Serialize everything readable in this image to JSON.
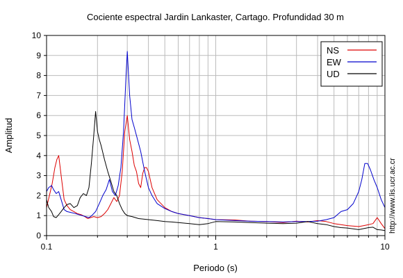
{
  "chart_data": {
    "type": "line",
    "title": "Cociente espectral Jardin Lankaster, Cartago. Profundidad 30 m",
    "xlabel": "Periodo (s)",
    "ylabel": "Amplitud",
    "x_scale": "log",
    "xlim": [
      0.1,
      10
    ],
    "ylim": [
      0,
      10
    ],
    "x_tick_labels": [
      {
        "value": 0.1,
        "label": "0.1"
      },
      {
        "value": 1,
        "label": "1"
      },
      {
        "value": 10,
        "label": "10"
      }
    ],
    "y_ticks": [
      0,
      1,
      2,
      3,
      4,
      5,
      6,
      7,
      8,
      9,
      10
    ],
    "grid": true,
    "legend_position": "top-right",
    "watermark": "http://www.lis.ucr.ac.cr",
    "series": [
      {
        "name": "NS",
        "color": "#dd0000",
        "x": [
          0.1,
          0.104,
          0.108,
          0.112,
          0.115,
          0.118,
          0.122,
          0.127,
          0.132,
          0.138,
          0.145,
          0.152,
          0.16,
          0.168,
          0.175,
          0.182,
          0.19,
          0.2,
          0.21,
          0.22,
          0.23,
          0.24,
          0.25,
          0.26,
          0.27,
          0.28,
          0.29,
          0.3,
          0.31,
          0.32,
          0.33,
          0.34,
          0.35,
          0.36,
          0.37,
          0.38,
          0.39,
          0.4,
          0.42,
          0.45,
          0.5,
          0.55,
          0.6,
          0.7,
          0.8,
          0.9,
          1.0,
          1.3,
          1.6,
          2.0,
          2.5,
          3.0,
          3.5,
          4.0,
          4.5,
          5.0,
          5.5,
          6.0,
          7.0,
          7.5,
          8.0,
          8.5,
          9.0,
          9.5,
          10.0
        ],
        "y": [
          1.4,
          2.0,
          2.6,
          3.4,
          3.8,
          4.0,
          3.0,
          1.8,
          1.5,
          1.3,
          1.2,
          1.1,
          1.05,
          0.95,
          0.85,
          0.9,
          0.95,
          0.9,
          0.95,
          1.1,
          1.3,
          1.6,
          1.9,
          1.7,
          2.0,
          3.2,
          5.2,
          6.0,
          4.8,
          4.2,
          3.5,
          3.2,
          2.6,
          2.4,
          3.1,
          3.4,
          3.4,
          3.2,
          2.4,
          1.8,
          1.4,
          1.2,
          1.1,
          1.0,
          0.9,
          0.85,
          0.8,
          0.78,
          0.72,
          0.7,
          0.65,
          0.72,
          0.68,
          0.75,
          0.7,
          0.6,
          0.55,
          0.5,
          0.45,
          0.5,
          0.55,
          0.6,
          0.9,
          0.6,
          0.35
        ]
      },
      {
        "name": "EW",
        "color": "#0000cc",
        "x": [
          0.1,
          0.103,
          0.107,
          0.11,
          0.114,
          0.118,
          0.122,
          0.127,
          0.132,
          0.14,
          0.148,
          0.155,
          0.162,
          0.17,
          0.178,
          0.185,
          0.195,
          0.205,
          0.215,
          0.225,
          0.235,
          0.245,
          0.255,
          0.265,
          0.275,
          0.285,
          0.295,
          0.3,
          0.31,
          0.32,
          0.33,
          0.34,
          0.36,
          0.38,
          0.4,
          0.42,
          0.45,
          0.5,
          0.55,
          0.6,
          0.7,
          0.8,
          0.9,
          1.0,
          1.3,
          1.6,
          2.0,
          2.5,
          3.0,
          3.5,
          4.0,
          4.5,
          5.0,
          5.5,
          6.0,
          6.5,
          7.0,
          7.3,
          7.6,
          7.9,
          8.2,
          8.6,
          9.0,
          9.5,
          10.0
        ],
        "y": [
          2.2,
          2.4,
          2.5,
          2.3,
          2.1,
          2.2,
          1.8,
          1.3,
          1.2,
          1.15,
          1.1,
          1.05,
          1.0,
          0.95,
          0.9,
          1.0,
          1.2,
          1.6,
          2.0,
          2.3,
          2.8,
          2.2,
          2.0,
          2.5,
          3.4,
          5.2,
          8.0,
          9.2,
          7.0,
          5.8,
          5.4,
          5.0,
          4.2,
          3.2,
          2.4,
          2.0,
          1.6,
          1.35,
          1.2,
          1.1,
          1.0,
          0.9,
          0.85,
          0.8,
          0.75,
          0.72,
          0.7,
          0.68,
          0.7,
          0.7,
          0.72,
          0.8,
          0.9,
          1.2,
          1.3,
          1.6,
          2.2,
          2.8,
          3.6,
          3.6,
          3.3,
          2.8,
          2.4,
          1.8,
          1.4
        ]
      },
      {
        "name": "UD",
        "color": "#000000",
        "x": [
          0.1,
          0.103,
          0.107,
          0.11,
          0.114,
          0.118,
          0.122,
          0.127,
          0.132,
          0.138,
          0.145,
          0.152,
          0.158,
          0.165,
          0.172,
          0.178,
          0.184,
          0.19,
          0.195,
          0.2,
          0.205,
          0.21,
          0.22,
          0.23,
          0.24,
          0.25,
          0.26,
          0.27,
          0.28,
          0.29,
          0.3,
          0.32,
          0.35,
          0.4,
          0.45,
          0.5,
          0.55,
          0.6,
          0.7,
          0.8,
          0.9,
          1.0,
          1.3,
          1.6,
          2.0,
          2.5,
          3.0,
          3.5,
          4.0,
          4.5,
          5.0,
          5.5,
          6.0,
          7.0,
          7.5,
          8.0,
          8.5,
          9.0,
          9.5,
          10.0
        ],
        "y": [
          1.8,
          1.4,
          1.2,
          0.95,
          0.9,
          1.05,
          1.2,
          1.4,
          1.55,
          1.6,
          1.4,
          1.5,
          1.9,
          2.1,
          2.0,
          2.4,
          3.6,
          5.0,
          6.2,
          5.2,
          4.8,
          4.5,
          3.8,
          3.2,
          2.7,
          2.2,
          2.0,
          1.6,
          1.3,
          1.1,
          1.0,
          0.95,
          0.85,
          0.8,
          0.75,
          0.7,
          0.68,
          0.65,
          0.6,
          0.55,
          0.6,
          0.7,
          0.68,
          0.65,
          0.62,
          0.6,
          0.62,
          0.7,
          0.6,
          0.55,
          0.45,
          0.4,
          0.38,
          0.3,
          0.35,
          0.4,
          0.42,
          0.3,
          0.28,
          0.25
        ]
      }
    ]
  }
}
